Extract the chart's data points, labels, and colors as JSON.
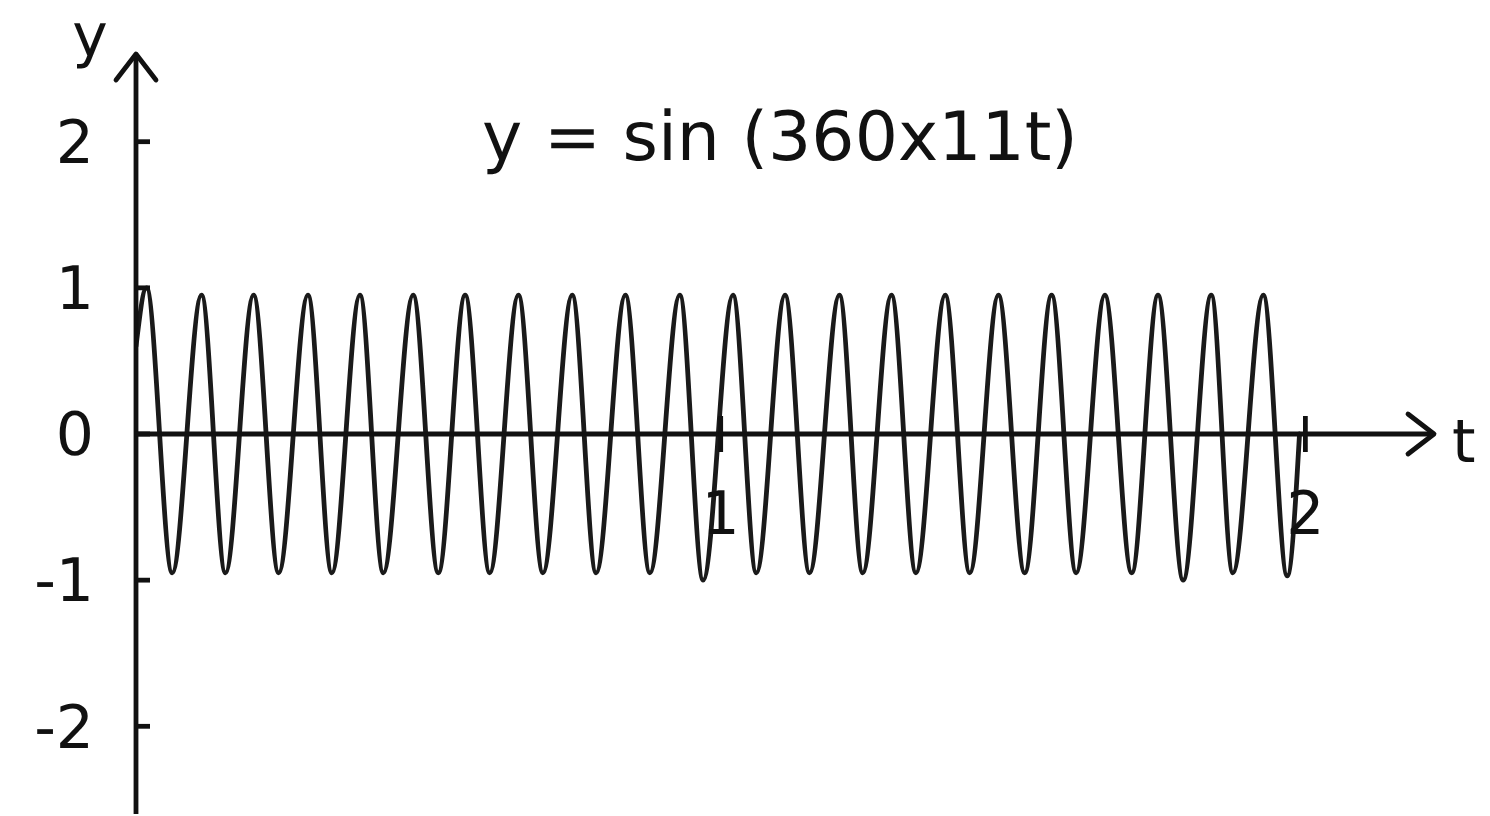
{
  "chart_data": {
    "type": "line",
    "title": "y = sin (360x11t)",
    "xlabel": "t",
    "ylabel": "y",
    "x": [
      0,
      0.018,
      0.062,
      0.112,
      0.153,
      0.201,
      0.244,
      0.294,
      0.335,
      0.383,
      0.423,
      0.474,
      0.517,
      0.563,
      0.605,
      0.654,
      0.696,
      0.746,
      0.787,
      0.837,
      0.879,
      0.93,
      0.97,
      1.021,
      1.061,
      1.11,
      1.152,
      1.203,
      1.243,
      1.292,
      1.334,
      1.384,
      1.426,
      1.475,
      1.52,
      1.566,
      1.608,
      1.657,
      1.703,
      1.748,
      1.791,
      1.839,
      1.876,
      1.928,
      1.969,
      1.99
    ],
    "values": [
      0.6,
      1,
      -0.95,
      0.95,
      -0.95,
      0.95,
      -0.95,
      0.95,
      -0.95,
      0.95,
      -0.95,
      0.95,
      -0.95,
      0.95,
      -0.95,
      0.95,
      -0.95,
      0.95,
      -0.95,
      0.95,
      -0.95,
      0.95,
      -1,
      0.95,
      -0.95,
      0.95,
      -0.95,
      0.95,
      -0.95,
      0.95,
      -0.95,
      0.95,
      -0.95,
      0.95,
      -0.95,
      0.95,
      -0.95,
      0.95,
      -0.95,
      0.95,
      -1,
      0.95,
      -0.95,
      0.95,
      -0.97,
      0
    ],
    "color": "#1a1a1a",
    "xlim": [
      0,
      2.22
    ],
    "ylim": [
      -2.6,
      2.6
    ],
    "xticks": [
      1,
      2
    ],
    "yticks": [
      -2,
      -1,
      0,
      1,
      2
    ],
    "marker": "none"
  }
}
